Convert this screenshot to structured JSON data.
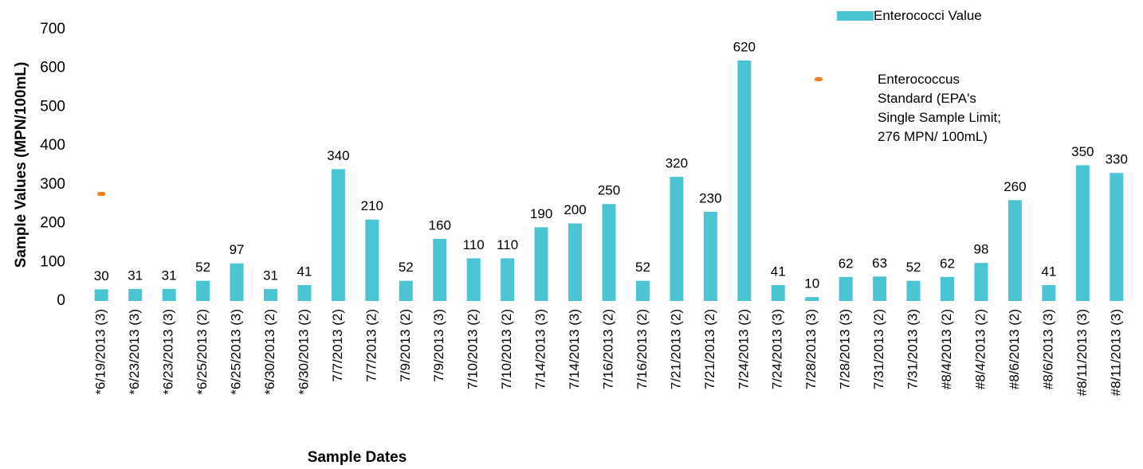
{
  "chart_data": {
    "type": "bar",
    "x_label": "Sample Dates",
    "y_label": "Sample Values (MPN/100mL)",
    "categories": [
      "*6/19/2013 (3)",
      "*6/23/2013 (3)",
      "*6/23/2013 (3)",
      "*6/25/2013 (2)",
      "*6/25/2013 (3)",
      "*6/30/2013 (2)",
      "*6/30/2013 (2)",
      "7/7/2013 (2)",
      "7/7/2013 (2)",
      "7/9/2013 (2)",
      "7/9/2013 (3)",
      "7/10/2013 (2)",
      "7/10/2013 (2)",
      "7/14/2013 (3)",
      "7/14/2013 (3)",
      "7/16/2013 (2)",
      "7/16/2013 (2)",
      "7/21/2013 (2)",
      "7/21/2013 (2)",
      "7/24/2013 (2)",
      "7/24/2013 (3)",
      "7/28/2013 (3)",
      "7/28/2013 (3)",
      "7/31/2013 (2)",
      "7/31/2013 (3)",
      "#8/4/2013 (2)",
      "#8/4/2013 (2)",
      "#8/6/2013 (2)",
      "#8/6/2013 (3)",
      "#8/11/2013 (3)",
      "#8/11/2013 (3)"
    ],
    "series": [
      {
        "name": "Enterococci Value",
        "color": "#4bc5d1",
        "type": "bar",
        "values": [
          30,
          31,
          31,
          52,
          97,
          31,
          41,
          340,
          210,
          52,
          160,
          110,
          110,
          190,
          200,
          250,
          52,
          320,
          230,
          620,
          41,
          10,
          62,
          63,
          52,
          62,
          98,
          260,
          41,
          350,
          330
        ]
      },
      {
        "name": "Enterococcus Standard (EPA's Single Sample Limit; 276 MPN/ 100mL)",
        "color": "#f58220",
        "type": "point",
        "values": [
          276,
          null,
          null,
          null,
          null,
          null,
          null,
          null,
          null,
          null,
          null,
          null,
          null,
          null,
          null,
          null,
          null,
          null,
          null,
          null,
          null,
          null,
          null,
          null,
          null,
          null,
          null,
          null,
          null,
          null,
          null
        ]
      }
    ],
    "ylim": [
      0,
      700
    ],
    "yticks": [
      0,
      100,
      200,
      300,
      400,
      500,
      600,
      700
    ]
  }
}
